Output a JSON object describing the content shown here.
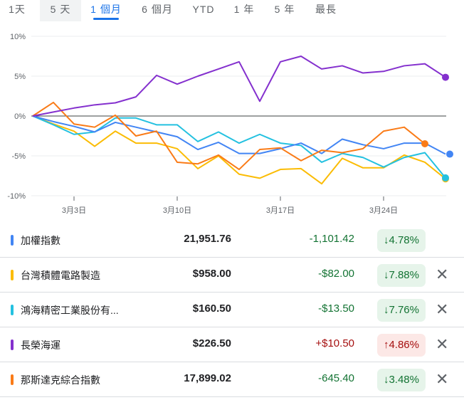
{
  "tabs": [
    {
      "label": "1天"
    },
    {
      "label": "5 天"
    },
    {
      "label": "1 個月"
    },
    {
      "label": "6 個月"
    },
    {
      "label": "YTD"
    },
    {
      "label": "1 年"
    },
    {
      "label": "5 年"
    },
    {
      "label": "最長"
    }
  ],
  "selected_tab": "1 個月",
  "chart_data": {
    "type": "line",
    "ylim": [
      -10,
      10
    ],
    "yticks": [
      "10%",
      "5%",
      "0%",
      "-5%",
      "-10%"
    ],
    "ytick_values": [
      10,
      5,
      0,
      -5,
      -10
    ],
    "xticks": [
      {
        "label": "3月3日",
        "index": 2
      },
      {
        "label": "3月10日",
        "index": 7
      },
      {
        "label": "3月17日",
        "index": 12
      },
      {
        "label": "3月24日",
        "index": 17
      }
    ],
    "grid": true,
    "series": [
      {
        "name": "加權指數",
        "color": "#4285f4",
        "values": [
          0,
          -0.7,
          -1.3,
          -2.0,
          -0.8,
          -1.4,
          -2.0,
          -2.6,
          -4.2,
          -3.3,
          -4.7,
          -4.7,
          -4.1,
          -3.4,
          -4.7,
          -2.9,
          -3.6,
          -4.1,
          -3.4,
          -3.4,
          -4.78
        ]
      },
      {
        "name": "台灣積體電路製造",
        "color": "#fbbc04",
        "values": [
          0,
          -1.0,
          -1.9,
          -3.8,
          -1.9,
          -3.4,
          -3.4,
          -4.1,
          -6.6,
          -5.0,
          -7.3,
          -7.8,
          -6.7,
          -6.6,
          -8.5,
          -5.3,
          -6.5,
          -6.5,
          -4.9,
          -5.8,
          -7.88
        ]
      },
      {
        "name": "鴻海精密工業股份有限公司",
        "color": "#24c1e0",
        "values": [
          0,
          -1.1,
          -2.3,
          -2.0,
          -0.25,
          -0.25,
          -1.1,
          -1.1,
          -3.2,
          -2.0,
          -3.4,
          -2.3,
          -3.4,
          -3.7,
          -5.8,
          -4.7,
          -5.2,
          -6.4,
          -5.2,
          -4.6,
          -7.76
        ]
      },
      {
        "name": "長榮海運",
        "color": "#8430ce",
        "values": [
          0,
          0.5,
          1.0,
          1.4,
          1.65,
          2.4,
          5.1,
          4.0,
          5.0,
          5.9,
          6.8,
          1.85,
          6.8,
          7.5,
          5.9,
          6.3,
          5.4,
          5.6,
          6.3,
          6.55,
          4.86
        ]
      },
      {
        "name": "那斯達克綜合指數",
        "color": "#fa7b17",
        "values": [
          0,
          1.7,
          -1.0,
          -1.4,
          0.1,
          -2.5,
          -1.9,
          -5.8,
          -6.0,
          -4.9,
          -6.7,
          -4.2,
          -4.0,
          -5.6,
          -4.3,
          -4.6,
          -4.1,
          -1.9,
          -1.4,
          -3.48
        ]
      }
    ]
  },
  "rows": [
    {
      "name": "加權指數",
      "color": "#4285f4",
      "price": "21,951.76",
      "change": "-1,101.42",
      "pct": "↓4.78%",
      "dir": "down",
      "removable": false
    },
    {
      "name": "台灣積體電路製造",
      "color": "#fbbc04",
      "price": "$958.00",
      "change": "-$82.00",
      "pct": "↓7.88%",
      "dir": "down",
      "removable": true
    },
    {
      "name": "鴻海精密工業股份有...",
      "color": "#24c1e0",
      "price": "$160.50",
      "change": "-$13.50",
      "pct": "↓7.76%",
      "dir": "down",
      "removable": true
    },
    {
      "name": "長榮海運",
      "color": "#8430ce",
      "price": "$226.50",
      "change": "+$10.50",
      "pct": "↑4.86%",
      "dir": "up",
      "removable": true
    },
    {
      "name": "那斯達克綜合指數",
      "color": "#fa7b17",
      "price": "17,899.02",
      "change": "-645.40",
      "pct": "↓3.48%",
      "dir": "down",
      "removable": true
    }
  ],
  "close_glyph": "✕"
}
